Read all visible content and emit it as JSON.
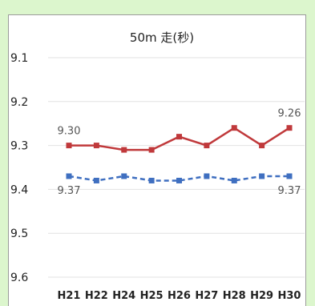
{
  "chart_data": {
    "type": "line",
    "title": "50m 走(秒)",
    "xlabel": "",
    "ylabel": "",
    "y_axis_inverted": true,
    "ylim": [
      9.1,
      9.6
    ],
    "yticks": [
      "9.1",
      "9.2",
      "9.3",
      "9.4",
      "9.5",
      "9.6"
    ],
    "ytick_values": [
      9.1,
      9.2,
      9.3,
      9.4,
      9.5,
      9.6
    ],
    "grid": true,
    "legend": "none",
    "categories": [
      "H21",
      "H22",
      "H24",
      "H25",
      "H26",
      "H27",
      "H28",
      "H29",
      "H30"
    ],
    "series": [
      {
        "values": [
          9.3,
          9.3,
          9.31,
          9.31,
          9.28,
          9.3,
          9.26,
          9.3,
          9.26
        ],
        "color": "#c0393b",
        "line_style": "solid",
        "marker": "square"
      },
      {
        "values": [
          9.37,
          9.38,
          9.37,
          9.38,
          9.38,
          9.37,
          9.38,
          9.37,
          9.37
        ],
        "color": "#3f6fc0",
        "line_style": "dashed",
        "marker": "square"
      }
    ],
    "annotations": [
      {
        "text": "9.30",
        "series": 0,
        "index": 0,
        "position": "above"
      },
      {
        "text": "9.26",
        "series": 0,
        "index": 8,
        "position": "above"
      },
      {
        "text": "9.37",
        "series": 1,
        "index": 0,
        "position": "below"
      },
      {
        "text": "9.37",
        "series": 1,
        "index": 8,
        "position": "below"
      }
    ]
  }
}
